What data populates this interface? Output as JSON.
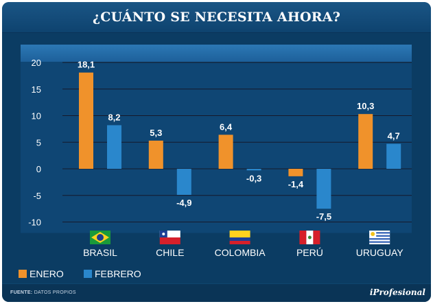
{
  "title": "¿CUÁNTO SE NECESITA AHORA?",
  "colors": {
    "enero": "#f0922b",
    "febrero": "#2a87cc",
    "background": "#0b3c63",
    "grid": "#16192a"
  },
  "chart_data": {
    "type": "bar",
    "categories": [
      "BRASIL",
      "CHILE",
      "COLOMBIA",
      "PERÚ",
      "URUGUAY"
    ],
    "series": [
      {
        "name": "ENERO",
        "values": [
          18.1,
          5.3,
          6.4,
          -1.4,
          10.3
        ]
      },
      {
        "name": "FEBRERO",
        "values": [
          8.2,
          -4.9,
          -0.3,
          -7.5,
          4.7
        ]
      }
    ],
    "value_labels": [
      [
        "18,1",
        "5,3",
        "6,4",
        "-1,4",
        "10,3"
      ],
      [
        "8,2",
        "-4,9",
        "-0,3",
        "-7,5",
        "4,7"
      ]
    ],
    "yticks": [
      20,
      15,
      10,
      5,
      0,
      -5,
      -10
    ],
    "ytick_labels": [
      "20",
      "15",
      "10",
      "5",
      "0",
      "-5",
      "-10"
    ],
    "ylim": [
      -10,
      20
    ],
    "title": "¿CUÁNTO SE NECESITA AHORA?",
    "xlabel": "",
    "ylabel": "",
    "legend": "bottom-left",
    "grid": true
  },
  "legend": {
    "enero": "ENERO",
    "febrero": "FEBRERO"
  },
  "footer": {
    "source_label": "FUENTE:",
    "source_value": "DATOS PROPIOS",
    "brand": "iProfesional"
  }
}
